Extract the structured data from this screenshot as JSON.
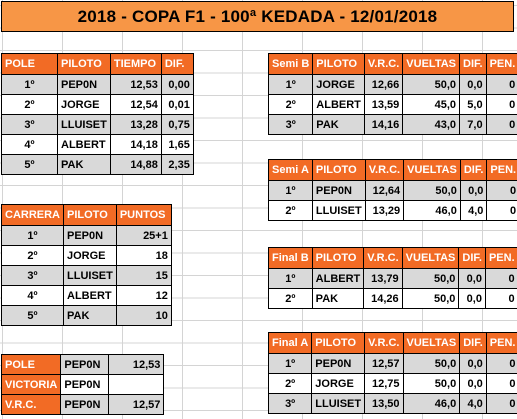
{
  "title": "2018 - COPA F1 - 100ª KEDADA - 12/01/2018",
  "pole": {
    "headers": [
      "POLE",
      "PILOTO",
      "TIEMPO",
      "DIF."
    ],
    "rows": [
      [
        "1º",
        "PEP0N",
        "12,53",
        "0,00"
      ],
      [
        "2º",
        "JORGE",
        "12,54",
        "0,01"
      ],
      [
        "3º",
        "LLUISET",
        "13,28",
        "0,75"
      ],
      [
        "4º",
        "ALBERT",
        "14,18",
        "1,65"
      ],
      [
        "5º",
        "PAK",
        "14,88",
        "2,35"
      ]
    ]
  },
  "carrera": {
    "headers": [
      "CARRERA",
      "PILOTO",
      "PUNTOS"
    ],
    "rows": [
      [
        "1º",
        "PEP0N",
        "25+1"
      ],
      [
        "2º",
        "JORGE",
        "18"
      ],
      [
        "3º",
        "LLUISET",
        "15"
      ],
      [
        "4º",
        "ALBERT",
        "12"
      ],
      [
        "5º",
        "PAK",
        "10"
      ]
    ]
  },
  "summary": {
    "rows": [
      [
        "POLE",
        "PEP0N",
        "12,53"
      ],
      [
        "VICTORIA",
        "PEP0N",
        ""
      ],
      [
        "V.R.C.",
        "PEP0N",
        "12,57"
      ]
    ]
  },
  "semi_b": {
    "headers": [
      "Semi B",
      "PILOTO",
      "V.R.C.",
      "VUELTAS",
      "DIF.",
      "PEN."
    ],
    "rows": [
      [
        "1º",
        "JORGE",
        "12,66",
        "50,0",
        "0,0",
        "0"
      ],
      [
        "2º",
        "ALBERT",
        "13,59",
        "45,0",
        "5,0",
        "0"
      ],
      [
        "3º",
        "PAK",
        "14,16",
        "43,0",
        "7,0",
        "0"
      ]
    ]
  },
  "semi_a": {
    "headers": [
      "Semi A",
      "PILOTO",
      "V.R.C.",
      "VUELTAS",
      "DIF.",
      "PEN."
    ],
    "rows": [
      [
        "1º",
        "PEP0N",
        "12,64",
        "50,0",
        "0,0",
        "0"
      ],
      [
        "2º",
        "LLUISET",
        "13,29",
        "46,0",
        "4,0",
        "0"
      ]
    ]
  },
  "final_b": {
    "headers": [
      "Final B",
      "PILOTO",
      "V.R.C.",
      "VUELTAS",
      "DIF.",
      "PEN."
    ],
    "rows": [
      [
        "1º",
        "ALBERT",
        "13,79",
        "50,0",
        "0,0",
        "0"
      ],
      [
        "2º",
        "PAK",
        "14,26",
        "50,0",
        "0,0",
        "0"
      ]
    ]
  },
  "final_a": {
    "headers": [
      "Final A",
      "PILOTO",
      "V.R.C.",
      "VUELTAS",
      "DIF.",
      "PEN."
    ],
    "rows": [
      [
        "1º",
        "PEP0N",
        "12,57",
        "50,0",
        "0,0",
        "0"
      ],
      [
        "2º",
        "JORGE",
        "12,75",
        "50,0",
        "0,0",
        "0"
      ],
      [
        "3º",
        "LLUISET",
        "13,50",
        "46,0",
        "4,0",
        "0"
      ]
    ]
  }
}
